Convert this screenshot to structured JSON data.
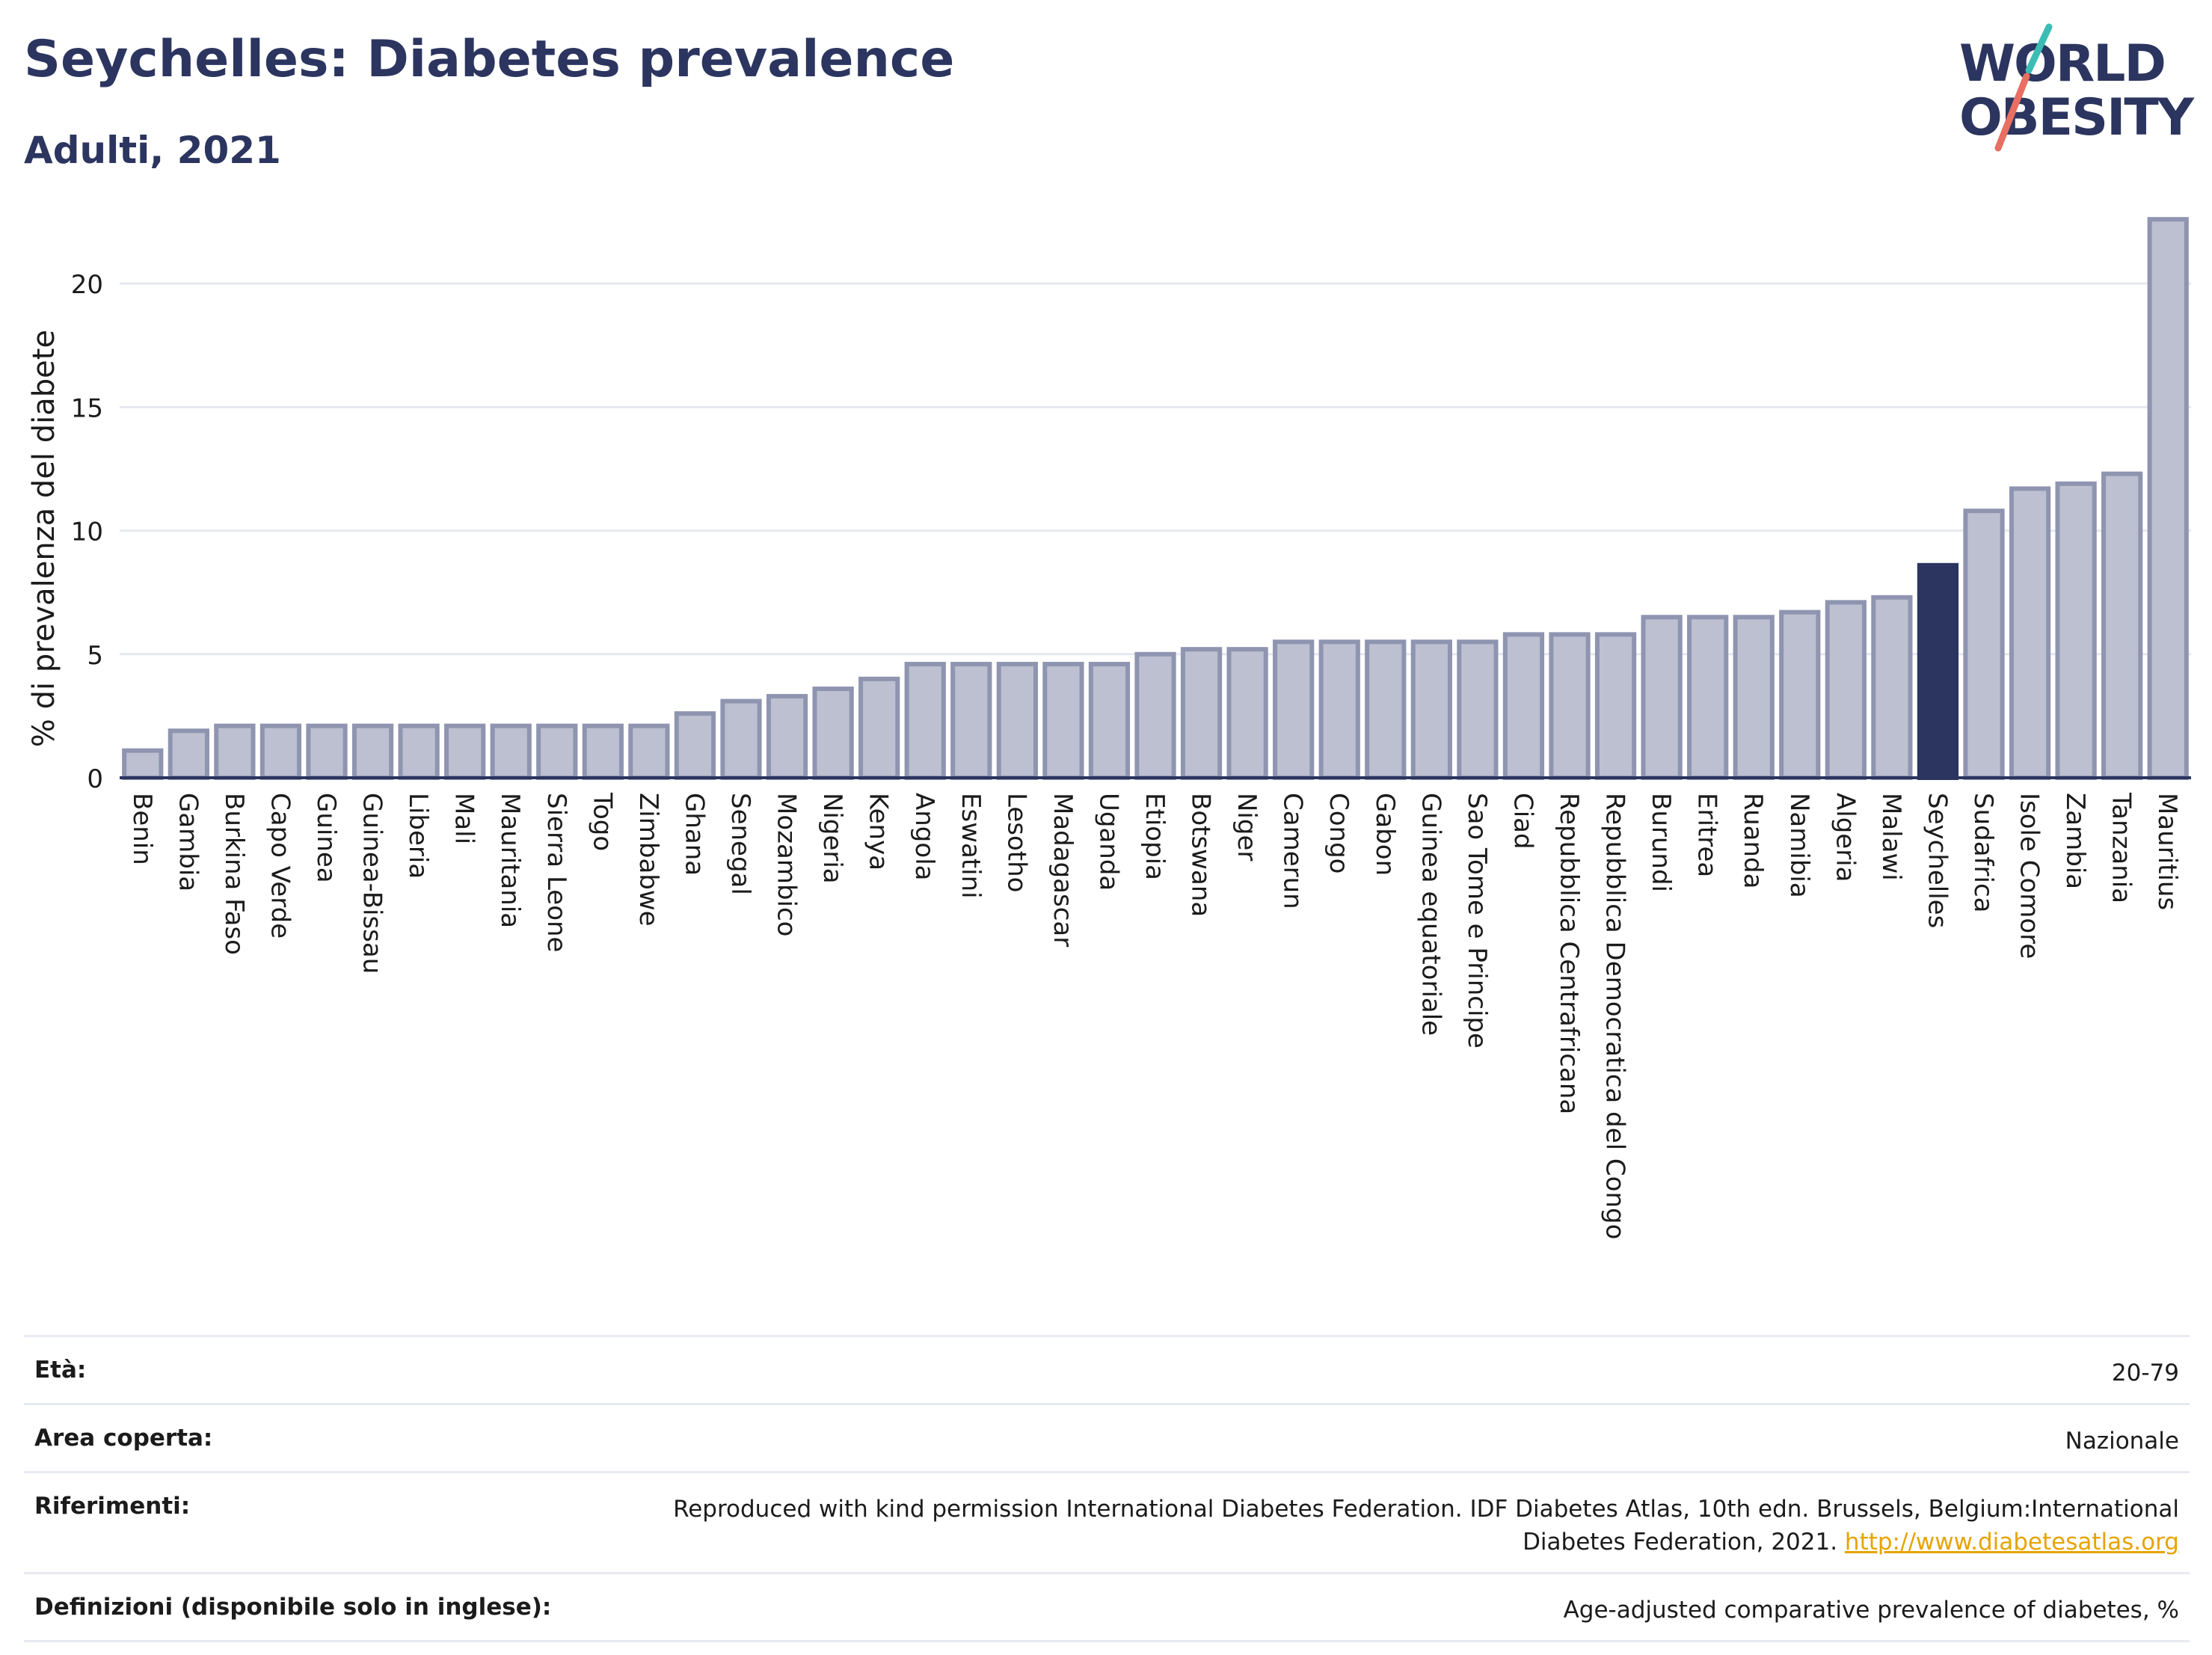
{
  "header": {
    "title": "Seychelles: Diabetes prevalence",
    "subtitle": "Adulti, 2021"
  },
  "logo": {
    "line1": "WORLD",
    "line2": "OBESITY",
    "accent_teal": "#3bbdb5",
    "accent_coral": "#e86f61"
  },
  "colors": {
    "bar_fill": "#bcc0d0",
    "bar_stroke": "#8f95b0",
    "highlight": "#2b355f",
    "grid": "#e6e8ef",
    "axis": "#2b355f",
    "text": "#2b355f"
  },
  "chart_data": {
    "type": "bar",
    "title": "",
    "xlabel": "",
    "ylabel": "% di prevalenza del diabete",
    "ylim": [
      0,
      23
    ],
    "yticks": [
      0,
      5,
      10,
      15,
      20
    ],
    "grid": true,
    "highlight": "Seychelles",
    "categories": [
      "Benin",
      "Gambia",
      "Burkina Faso",
      "Capo Verde",
      "Guinea",
      "Guinea-Bissau",
      "Liberia",
      "Mali",
      "Mauritania",
      "Sierra Leone",
      "Togo",
      "Zimbabwe",
      "Ghana",
      "Senegal",
      "Mozambico",
      "Nigeria",
      "Kenya",
      "Angola",
      "Eswatini",
      "Lesotho",
      "Madagascar",
      "Uganda",
      "Etiopia",
      "Botswana",
      "Niger",
      "Camerun",
      "Congo",
      "Gabon",
      "Guinea equatoriale",
      "Sao Tome e Principe",
      "Ciad",
      "Repubblica Centrafricana",
      "Repubblica Democratica del Congo",
      "Burundi",
      "Eritrea",
      "Ruanda",
      "Namibia",
      "Algeria",
      "Malawi",
      "Seychelles",
      "Sudafrica",
      "Isole Comore",
      "Zambia",
      "Tanzania",
      "Mauritius"
    ],
    "values": [
      1.1,
      1.9,
      2.1,
      2.1,
      2.1,
      2.1,
      2.1,
      2.1,
      2.1,
      2.1,
      2.1,
      2.1,
      2.6,
      3.1,
      3.3,
      3.6,
      4.0,
      4.6,
      4.6,
      4.6,
      4.6,
      4.6,
      5.0,
      5.2,
      5.2,
      5.5,
      5.5,
      5.5,
      5.5,
      5.5,
      5.8,
      5.8,
      5.8,
      6.5,
      6.5,
      6.5,
      6.7,
      7.1,
      7.3,
      8.6,
      10.8,
      11.7,
      11.9,
      12.3,
      22.6
    ]
  },
  "info": {
    "age_label": "Età:",
    "age_value": "20-79",
    "area_label": "Area coperta:",
    "area_value": "Nazionale",
    "refs_label": "Riferimenti:",
    "refs_value": "Reproduced with kind permission International Diabetes Federation.  IDF Diabetes Atlas, 10th edn. Brussels, Belgium:International Diabetes Federation, 2021. ",
    "refs_link": "http://www.diabetesatlas.org",
    "defs_label": "Definizioni (disponibile solo in inglese):",
    "defs_value": "Age-adjusted comparative prevalence of diabetes, %"
  }
}
